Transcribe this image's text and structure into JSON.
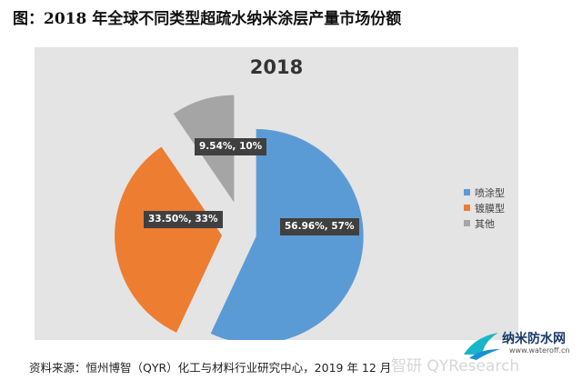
{
  "figure_title": "图：2018 年全球不同类型超疏水纳米涂层产量市场份额",
  "source_note": "资料来源：恒州博智（QYR）化工与材料行业研究中心，2019 年 12 月",
  "watermark": {
    "ghost_text": "智研 QYResearch",
    "logo_name": "纳米防水网",
    "logo_url": "www.wateroff.cn"
  },
  "colors": {
    "background": "#e4e4e4",
    "spray": "#5b9bd5",
    "plating": "#ed7d31",
    "other": "#a5a5a5",
    "label_box": "#404040"
  },
  "chart_data": {
    "type": "pie",
    "title": "2018",
    "exploded": true,
    "legend_position": "right",
    "slices": [
      {
        "name": "喷涂型",
        "value": 56.96,
        "label": "56.96%, 57%",
        "color": "#5b9bd5"
      },
      {
        "name": "镀膜型",
        "value": 33.5,
        "label": "33.50%, 33%",
        "color": "#ed7d31"
      },
      {
        "name": "其他",
        "value": 9.54,
        "label": "9.54%, 10%",
        "color": "#a5a5a5"
      }
    ]
  }
}
